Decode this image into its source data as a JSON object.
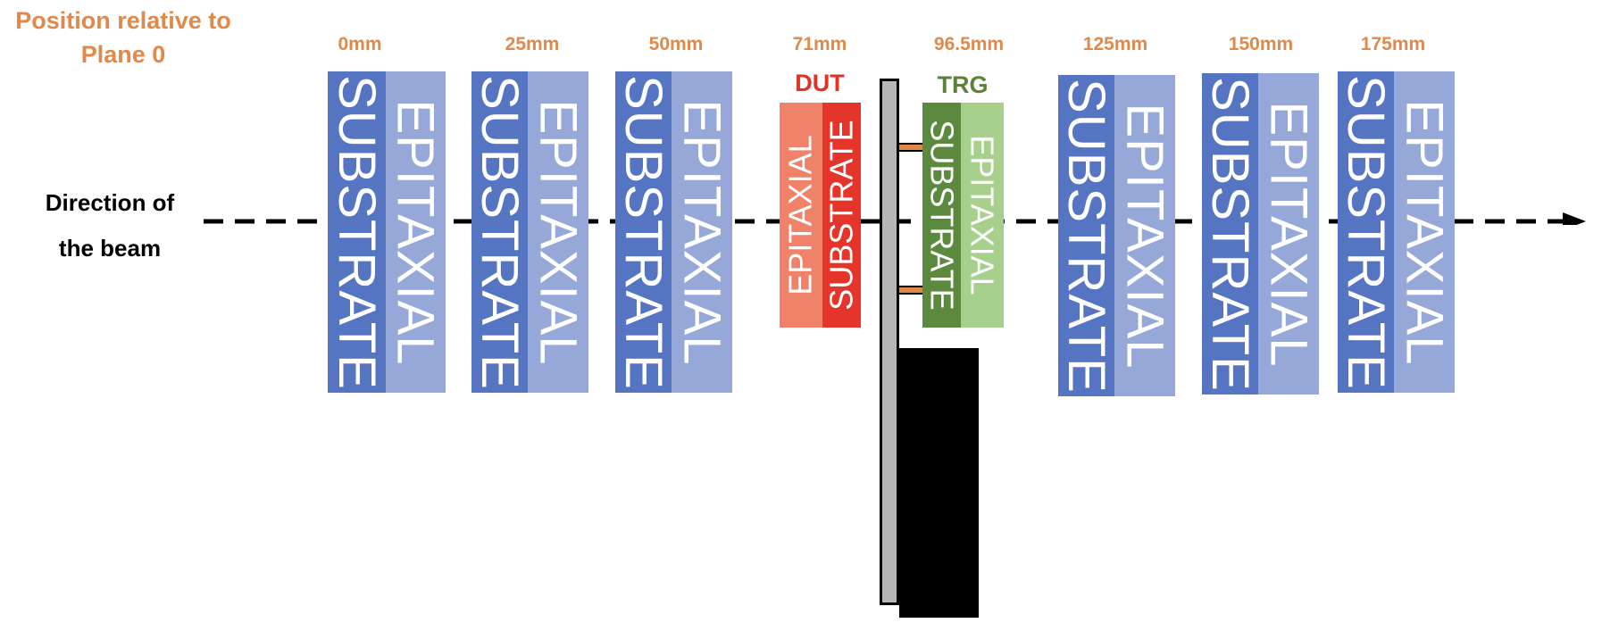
{
  "title": "Position relative to\nPlane 0",
  "beam_label": "Direction of\nthe beam",
  "colors": {
    "position_text": "#e0894a",
    "plane_substrate": "#5574c2",
    "plane_epitaxial": "#95a8d8",
    "dut_label": "#e03226",
    "dut_epitaxial": "#ef8268",
    "dut_substrate": "#e5352b",
    "trg_label": "#5a8239",
    "trg_substrate": "#5b8a3e",
    "trg_epitaxial": "#a8d08d"
  },
  "planes": [
    {
      "position": "0mm",
      "substrate": "SUBSTRATE",
      "epitaxial": "EPITAXIAL"
    },
    {
      "position": "25mm",
      "substrate": "SUBSTRATE",
      "epitaxial": "EPITAXIAL"
    },
    {
      "position": "50mm",
      "substrate": "SUBSTRATE",
      "epitaxial": "EPITAXIAL"
    },
    {
      "position": "125mm",
      "substrate": "SUBSTRATE",
      "epitaxial": "EPITAXIAL"
    },
    {
      "position": "150mm",
      "substrate": "SUBSTRATE",
      "epitaxial": "EPITAXIAL"
    },
    {
      "position": "175mm",
      "substrate": "SUBSTRATE",
      "epitaxial": "EPITAXIAL"
    }
  ],
  "dut": {
    "label": "DUT",
    "position": "71mm",
    "epitaxial": "EPITAXIAL",
    "substrate": "SUBSTRATE"
  },
  "trg": {
    "label": "TRG",
    "position": "96.5mm",
    "substrate": "SUBSTRATE",
    "epitaxial": "EPITAXIAL"
  }
}
